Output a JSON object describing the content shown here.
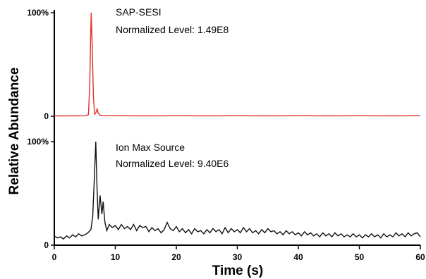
{
  "chart_data": {
    "type": "line",
    "xlabel": "Time (s)",
    "ylabel": "Relative Abundance",
    "xlim": [
      0,
      60
    ],
    "x_ticks": [
      "0",
      "10",
      "20",
      "30",
      "40",
      "50",
      "60"
    ],
    "grid": false,
    "panels": [
      {
        "name": "SAP-SESI",
        "annotation_title": "SAP-SESI",
        "annotation_level": "Normalized Level: 1.49E8",
        "color": "#e0312a",
        "y_tick_top": "100%",
        "y_tick_bottom": "0",
        "ylim": [
          0,
          100
        ],
        "points": [
          [
            0,
            0.3
          ],
          [
            1,
            0.4
          ],
          [
            2,
            0.3
          ],
          [
            3,
            0.5
          ],
          [
            4,
            0.4
          ],
          [
            5,
            0.5
          ],
          [
            5.6,
            1.5
          ],
          [
            5.8,
            30
          ],
          [
            5.95,
            75
          ],
          [
            6.05,
            100
          ],
          [
            6.2,
            72
          ],
          [
            6.4,
            20
          ],
          [
            6.6,
            2
          ],
          [
            6.8,
            3
          ],
          [
            7.0,
            7
          ],
          [
            7.2,
            3
          ],
          [
            7.5,
            1
          ],
          [
            8,
            0.6
          ],
          [
            10,
            0.5
          ],
          [
            15,
            0.4
          ],
          [
            20,
            0.5
          ],
          [
            25,
            0.4
          ],
          [
            30,
            0.5
          ],
          [
            35,
            0.4
          ],
          [
            40,
            0.5
          ],
          [
            45,
            0.4
          ],
          [
            50,
            0.5
          ],
          [
            55,
            0.4
          ],
          [
            60,
            0.5
          ]
        ]
      },
      {
        "name": "Ion Max Source",
        "annotation_title": "Ion Max Source",
        "annotation_level": "Normalized Level: 9.40E6",
        "color": "#111111",
        "y_tick_top": "100%",
        "y_tick_bottom": "0",
        "ylim": [
          0,
          100
        ],
        "points": [
          [
            0,
            9
          ],
          [
            0.5,
            7
          ],
          [
            1,
            8
          ],
          [
            1.5,
            6
          ],
          [
            2,
            9
          ],
          [
            2.5,
            7
          ],
          [
            3,
            10
          ],
          [
            3.5,
            8
          ],
          [
            4,
            11
          ],
          [
            4.5,
            9
          ],
          [
            5,
            10
          ],
          [
            5.5,
            12
          ],
          [
            6,
            15
          ],
          [
            6.3,
            28
          ],
          [
            6.6,
            70
          ],
          [
            6.8,
            100
          ],
          [
            7.0,
            55
          ],
          [
            7.2,
            25
          ],
          [
            7.5,
            48
          ],
          [
            7.8,
            30
          ],
          [
            8.0,
            42
          ],
          [
            8.3,
            22
          ],
          [
            8.6,
            14
          ],
          [
            9,
            20
          ],
          [
            9.5,
            17
          ],
          [
            10,
            19
          ],
          [
            10.5,
            15
          ],
          [
            11,
            20
          ],
          [
            11.5,
            16
          ],
          [
            12,
            18
          ],
          [
            12.5,
            15
          ],
          [
            13,
            20
          ],
          [
            13.5,
            14
          ],
          [
            14,
            19
          ],
          [
            14.5,
            17
          ],
          [
            15,
            18
          ],
          [
            15.5,
            13
          ],
          [
            16,
            17
          ],
          [
            16.5,
            14
          ],
          [
            17,
            16
          ],
          [
            17.5,
            12
          ],
          [
            18,
            15
          ],
          [
            18.5,
            22
          ],
          [
            19,
            16
          ],
          [
            19.5,
            14
          ],
          [
            20,
            18
          ],
          [
            20.5,
            13
          ],
          [
            21,
            16
          ],
          [
            21.5,
            12
          ],
          [
            22,
            15
          ],
          [
            22.5,
            11
          ],
          [
            23,
            16
          ],
          [
            23.5,
            13
          ],
          [
            24,
            14
          ],
          [
            24.5,
            11
          ],
          [
            25,
            15
          ],
          [
            25.5,
            12
          ],
          [
            26,
            16
          ],
          [
            26.5,
            13
          ],
          [
            27,
            15
          ],
          [
            27.5,
            11
          ],
          [
            28,
            17
          ],
          [
            28.5,
            12
          ],
          [
            29,
            16
          ],
          [
            29.5,
            13
          ],
          [
            30,
            15
          ],
          [
            30.5,
            12
          ],
          [
            31,
            17
          ],
          [
            31.5,
            13
          ],
          [
            32,
            16
          ],
          [
            32.5,
            12
          ],
          [
            33,
            14
          ],
          [
            33.5,
            11
          ],
          [
            34,
            15
          ],
          [
            34.5,
            12
          ],
          [
            35,
            16
          ],
          [
            35.5,
            13
          ],
          [
            36,
            14
          ],
          [
            36.5,
            11
          ],
          [
            37,
            13
          ],
          [
            37.5,
            10
          ],
          [
            38,
            14
          ],
          [
            38.5,
            11
          ],
          [
            39,
            13
          ],
          [
            39.5,
            10
          ],
          [
            40,
            12
          ],
          [
            40.5,
            9
          ],
          [
            41,
            13
          ],
          [
            41.5,
            10
          ],
          [
            42,
            12
          ],
          [
            42.5,
            9
          ],
          [
            43,
            11
          ],
          [
            43.5,
            8
          ],
          [
            44,
            12
          ],
          [
            44.5,
            9
          ],
          [
            45,
            11
          ],
          [
            45.5,
            8
          ],
          [
            46,
            12
          ],
          [
            46.5,
            9
          ],
          [
            47,
            11
          ],
          [
            47.5,
            8
          ],
          [
            48,
            10
          ],
          [
            48.5,
            8
          ],
          [
            49,
            11
          ],
          [
            49.5,
            8
          ],
          [
            50,
            10
          ],
          [
            50.5,
            7
          ],
          [
            51,
            10
          ],
          [
            51.5,
            8
          ],
          [
            52,
            11
          ],
          [
            52.5,
            8
          ],
          [
            53,
            10
          ],
          [
            53.5,
            7
          ],
          [
            54,
            11
          ],
          [
            54.5,
            8
          ],
          [
            55,
            10
          ],
          [
            55.5,
            8
          ],
          [
            56,
            12
          ],
          [
            56.5,
            9
          ],
          [
            57,
            11
          ],
          [
            57.5,
            8
          ],
          [
            58,
            12
          ],
          [
            58.5,
            9
          ],
          [
            59,
            11
          ],
          [
            59.5,
            12
          ],
          [
            60,
            8
          ]
        ]
      }
    ]
  }
}
